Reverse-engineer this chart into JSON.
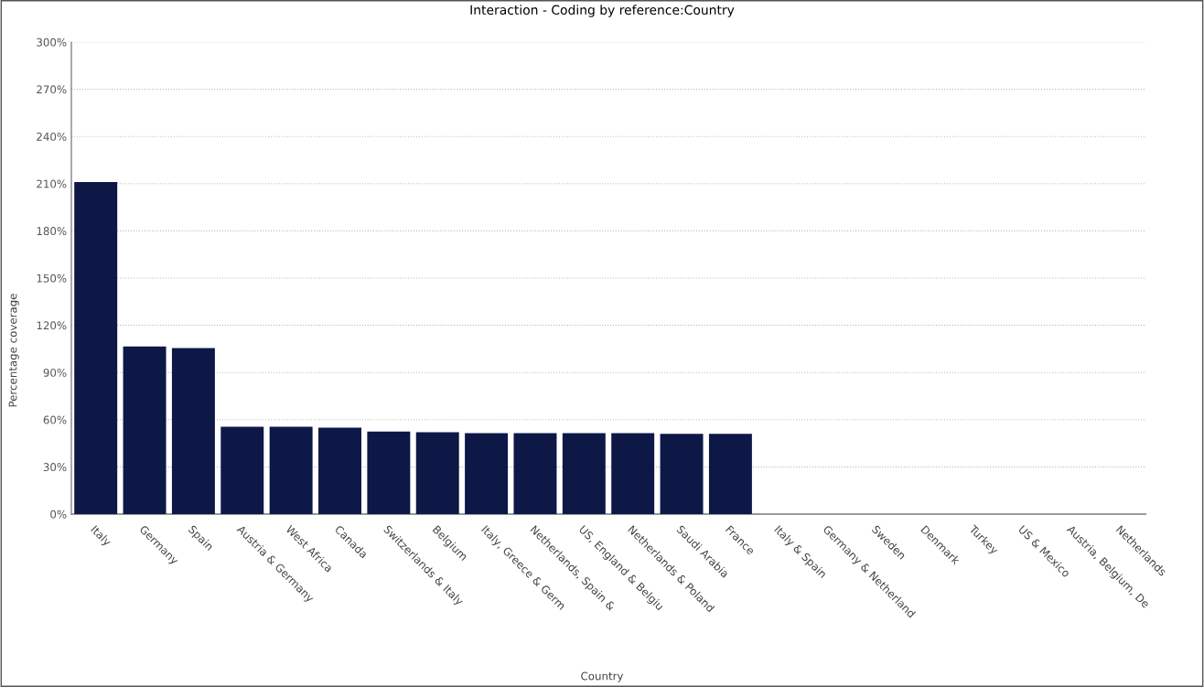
{
  "chart_data": {
    "type": "bar",
    "title": "Interaction - Coding by reference:Country",
    "xlabel": "Country",
    "ylabel": "Percentage coverage",
    "categories": [
      "Italy",
      "Germany",
      "Spain",
      "Austria & Germany",
      "West Africa",
      "Canada",
      "Switzerlands & Italy",
      "Belgium",
      "Italy, Greece & Germ",
      "Netherlands, Spain &",
      "US, England & Belgiu",
      "Netherlands & Poland",
      "Saudi Arabia",
      "France",
      "Italy & Spain",
      "Germany & Netherland",
      "Sweden",
      "Denmark",
      "Turkey",
      "US & Mexico",
      "Austria, Belgium, De",
      "Netherlands"
    ],
    "values": [
      211,
      106.5,
      105.5,
      55.5,
      55.5,
      55,
      52.5,
      52,
      51.5,
      51.5,
      51.5,
      51.5,
      51,
      51,
      0,
      0,
      0,
      0,
      0,
      0,
      0,
      0
    ],
    "color": "#0d1847",
    "ylim": [
      0,
      300
    ],
    "yticks": [
      {
        "value": 0,
        "label": "0%"
      },
      {
        "value": 30,
        "label": "30%"
      },
      {
        "value": 60,
        "label": "60%"
      },
      {
        "value": 90,
        "label": "90%"
      },
      {
        "value": 120,
        "label": "120%"
      },
      {
        "value": 150,
        "label": "150%"
      },
      {
        "value": 180,
        "label": "180%"
      },
      {
        "value": 210,
        "label": "210%"
      },
      {
        "value": 240,
        "label": "240%"
      },
      {
        "value": 270,
        "label": "270%"
      },
      {
        "value": 300,
        "label": "300%"
      }
    ],
    "grid": "y",
    "legend": false
  }
}
